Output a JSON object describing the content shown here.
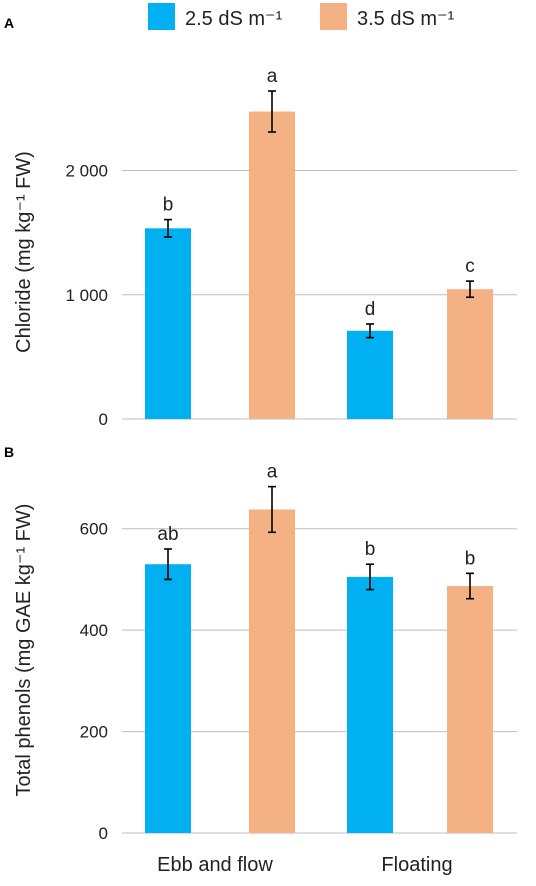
{
  "colors": {
    "series_a": "#00b0f0",
    "series_b": "#f4b183"
  },
  "legend": {
    "position": "top"
  },
  "categories": [
    "Ebb and flow",
    "Floating"
  ],
  "chart_data": [
    {
      "type": "bar",
      "panel_label": "A",
      "ylabel": "Chloride (mg kg⁻¹ FW)",
      "ylim": [
        0,
        2600
      ],
      "yticks": [
        0,
        1000,
        2000
      ],
      "ytick_labels": [
        "0",
        "1 000",
        "2 000"
      ],
      "grid": true,
      "categories": [
        "Ebb and flow",
        "Floating"
      ],
      "series": [
        {
          "name": "2.5 dS m⁻¹",
          "values": [
            1535,
            710
          ],
          "errors": [
            70,
            55
          ],
          "letters": [
            "b",
            "d"
          ]
        },
        {
          "name": "3.5 dS m⁻¹",
          "values": [
            2475,
            1045
          ],
          "errors": [
            165,
            65
          ],
          "letters": [
            "a",
            "c"
          ]
        }
      ]
    },
    {
      "type": "bar",
      "panel_label": "B",
      "ylabel": "Total phenols (mg GAE kg⁻¹ FW)",
      "ylim": [
        0,
        700
      ],
      "yticks": [
        0,
        200,
        400,
        600
      ],
      "ytick_labels": [
        "0",
        "200",
        "400",
        "600"
      ],
      "grid": true,
      "categories": [
        "Ebb and flow",
        "Floating"
      ],
      "series": [
        {
          "name": "2.5 dS m⁻¹",
          "values": [
            530,
            505
          ],
          "errors": [
            30,
            25
          ],
          "letters": [
            "ab",
            "b"
          ]
        },
        {
          "name": "3.5 dS m⁻¹",
          "values": [
            638,
            487
          ],
          "errors": [
            45,
            25
          ],
          "letters": [
            "a",
            "b"
          ]
        }
      ]
    }
  ]
}
